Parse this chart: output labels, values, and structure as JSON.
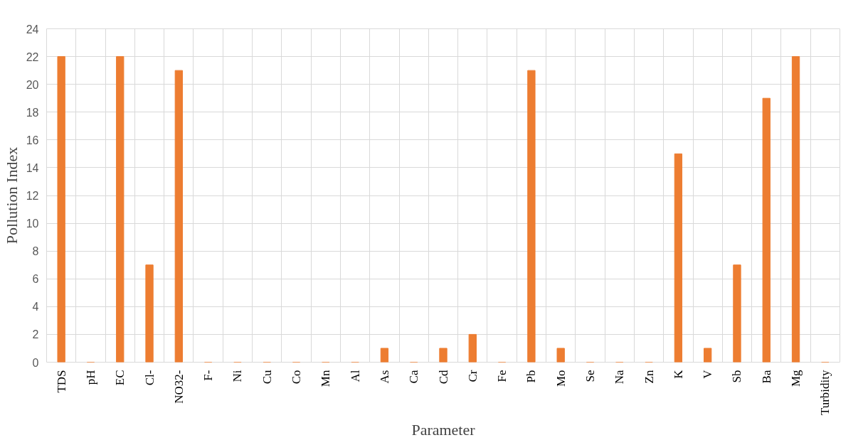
{
  "chart_data": {
    "type": "bar",
    "xlabel": "Parameter",
    "ylabel": "Pollution Index",
    "categories": [
      "TDS",
      "pH",
      "EC",
      "Cl-",
      "NO32-",
      "F-",
      "Ni",
      "Cu",
      "Co",
      "Mn",
      "Al",
      "As",
      "Ca",
      "Cd",
      "Cr",
      "Fe",
      "Pb",
      "Mo",
      "Se",
      "Na",
      "Zn",
      "K",
      "V",
      "Sb",
      "Ba",
      "Mg",
      "Turbidity"
    ],
    "values": [
      22,
      0,
      22,
      7,
      21,
      0,
      0,
      0,
      0,
      0,
      0,
      1,
      0,
      1,
      2,
      0,
      21,
      1,
      0,
      0,
      0,
      15,
      1,
      7,
      19,
      22,
      0
    ],
    "color": "#ed7d31",
    "ylim": [
      0,
      24
    ],
    "yticks": [
      0,
      2,
      4,
      6,
      8,
      10,
      12,
      14,
      16,
      18,
      20,
      22,
      24
    ],
    "grid": true
  }
}
